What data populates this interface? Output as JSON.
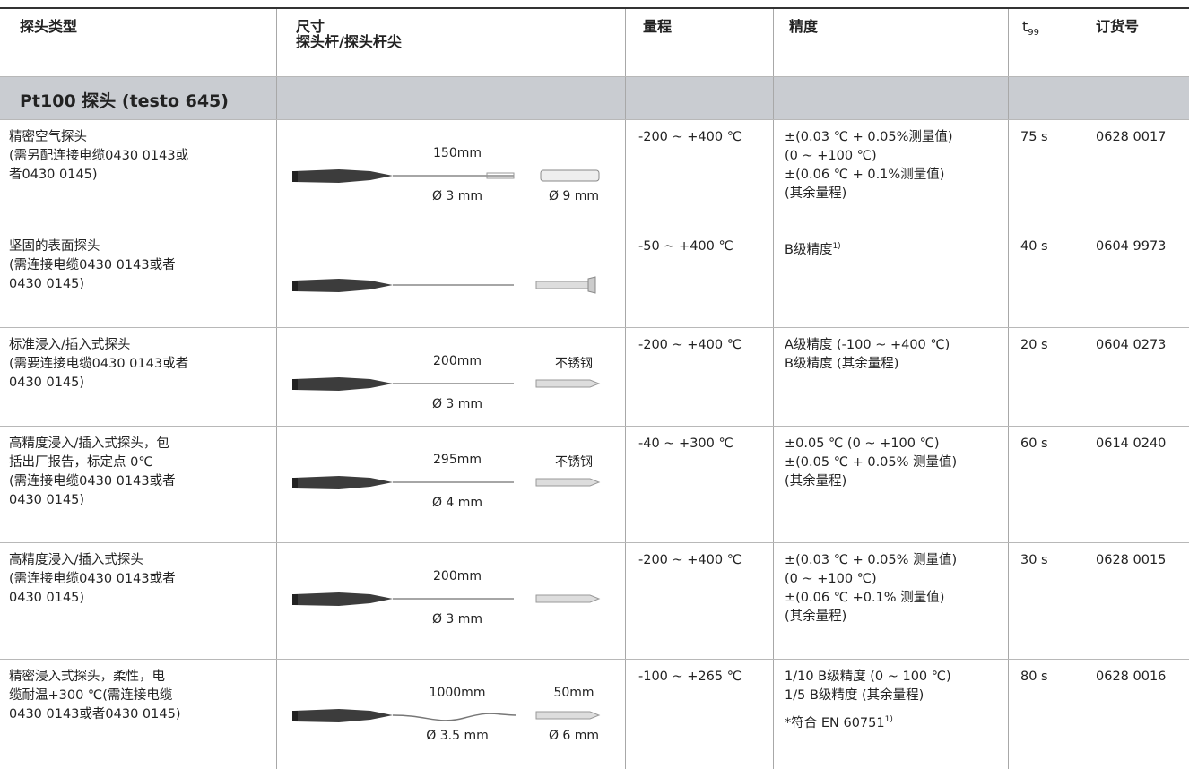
{
  "table": {
    "header": {
      "type": "探头类型",
      "size": [
        "尺寸",
        "探头杆/探头杆尖"
      ],
      "range": "量程",
      "accuracy": "精度",
      "t99": {
        "base": "t",
        "sub": "99"
      },
      "order": "订货号"
    },
    "section": "Pt100 探头 (testo 645)",
    "rows": [
      {
        "type": [
          "精密空气探头",
          "(需另配连接电缆0430 0143或",
          "者0430 0145)"
        ],
        "dims": {
          "length": "150mm",
          "diameter": "Ø 3 mm",
          "tip_bottom": "Ø 9 mm"
        },
        "range": "-200 ~ +400 ℃",
        "accuracy": [
          "±(0.03 ℃ + 0.05%测量值)",
          "(0 ~ +100 ℃)",
          "±(0.06 ℃ + 0.1%测量值)",
          "(其余量程)"
        ],
        "t99": "75 s",
        "order": "0628 0017"
      },
      {
        "type": [
          "坚固的表面探头",
          "(需连接电缆0430 0143或者",
          "0430 0145)"
        ],
        "range": "-50 ~ +400 ℃",
        "accuracy": [
          {
            "text": "B级精度",
            "sup": "1)"
          }
        ],
        "t99": "40 s",
        "order": "0604 9973"
      },
      {
        "type": [
          "标准浸入/插入式探头",
          "(需要连接电缆0430 0143或者",
          "0430 0145)"
        ],
        "dims": {
          "length": "200mm",
          "diameter": "Ø 3 mm",
          "tip_top": "不锈钢"
        },
        "range": "-200 ~ +400 ℃",
        "accuracy": [
          "A级精度 (-100 ~ +400 ℃)",
          "B级精度 (其余量程)"
        ],
        "t99": "20 s",
        "order": "0604 0273"
      },
      {
        "type": [
          "高精度浸入/插入式探头，包",
          "括出厂报告，标定点 0℃",
          "(需连接电缆0430 0143或者",
          "0430 0145)"
        ],
        "dims": {
          "length": "295mm",
          "diameter": "Ø 4 mm",
          "tip_top": "不锈钢"
        },
        "range": "-40 ~ +300 ℃",
        "accuracy": [
          "±0.05 ℃ (0 ~ +100 ℃)",
          "±(0.05 ℃ + 0.05% 测量值)",
          "(其余量程)"
        ],
        "t99": "60 s",
        "order": "0614 0240"
      },
      {
        "type": [
          "高精度浸入/插入式探头",
          "(需连接电缆0430 0143或者",
          "0430 0145)"
        ],
        "dims": {
          "length": "200mm",
          "diameter": "Ø 3 mm"
        },
        "range": "-200 ~ +400 ℃",
        "accuracy": [
          "±(0.03 ℃ + 0.05% 测量值)",
          "(0 ~ +100 ℃)",
          "±(0.06 ℃ +0.1% 测量值)",
          "(其余量程)"
        ],
        "t99": "30 s",
        "order": "0628 0015"
      },
      {
        "type": [
          "精密浸入式探头，柔性，电",
          "缆耐温+300 ℃(需连接电缆",
          "0430 0143或者0430 0145)"
        ],
        "dims": {
          "length": "1000mm",
          "diameter": "Ø 3.5 mm",
          "tip_top": "50mm",
          "tip_bottom": "Ø 6 mm"
        },
        "range": "-100 ~ +265 ℃",
        "accuracy": [
          "1/10 B级精度 (0 ~ 100 ℃)",
          "1/5 B级精度 (其余量程)",
          {
            "text": "*符合 EN 60751",
            "sup": "1)"
          }
        ],
        "t99": "80 s",
        "order": "0628 0016"
      }
    ]
  }
}
